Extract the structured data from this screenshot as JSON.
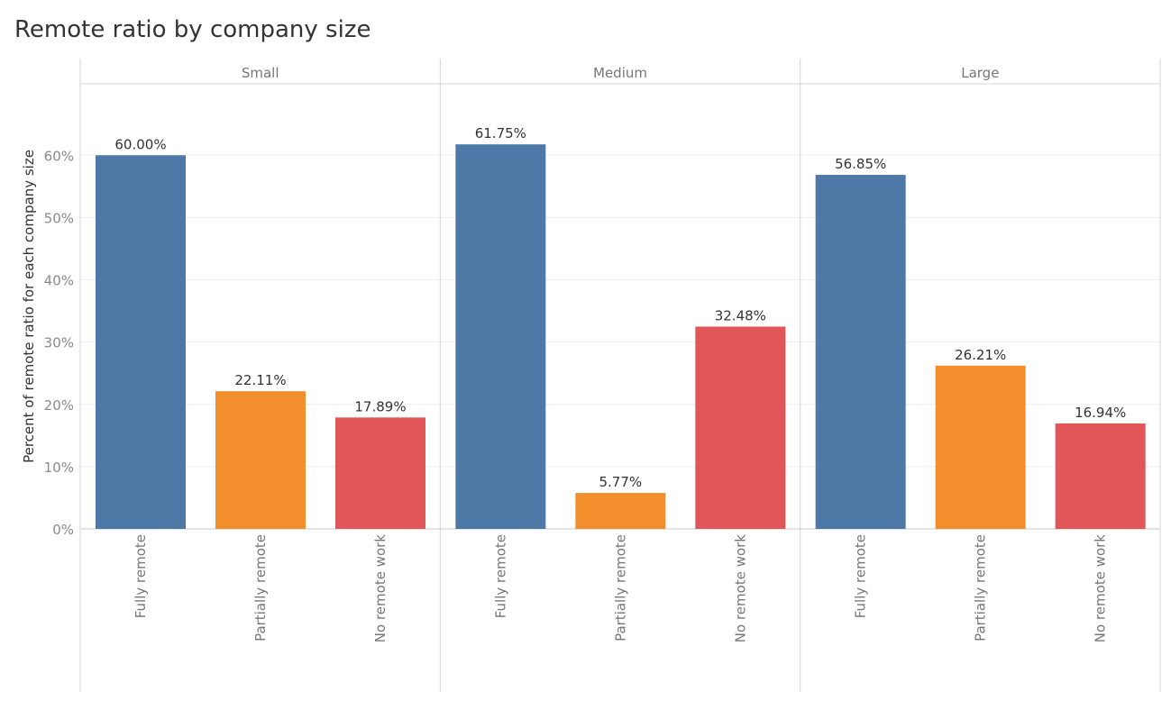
{
  "title": "Remote ratio by company size",
  "colors": {
    "Fully remote": "#4e79a7",
    "Partially remote": "#f28e2b",
    "No remote work": "#e15759"
  },
  "chart_data": {
    "type": "bar",
    "title": "Remote ratio by company size",
    "ylabel": "Percent of remote ratio for each company size",
    "xlabel": "",
    "ylim": [
      0,
      68
    ],
    "y_ticks": [
      {
        "value": 0,
        "label": "0%"
      },
      {
        "value": 10,
        "label": "10%"
      },
      {
        "value": 20,
        "label": "20%"
      },
      {
        "value": 30,
        "label": "30%"
      },
      {
        "value": 40,
        "label": "40%"
      },
      {
        "value": 50,
        "label": "50%"
      },
      {
        "value": 60,
        "label": "60%"
      }
    ],
    "grid": true,
    "categories": [
      "Fully remote",
      "Partially remote",
      "No remote work"
    ],
    "panels": [
      {
        "name": "Small",
        "values": [
          60.0,
          22.11,
          17.89
        ],
        "labels": [
          "60.00%",
          "22.11%",
          "17.89%"
        ]
      },
      {
        "name": "Medium",
        "values": [
          61.75,
          5.77,
          32.48
        ],
        "labels": [
          "61.75%",
          "5.77%",
          "32.48%"
        ]
      },
      {
        "name": "Large",
        "values": [
          56.85,
          26.21,
          16.94
        ],
        "labels": [
          "56.85%",
          "26.21%",
          "16.94%"
        ]
      }
    ]
  }
}
